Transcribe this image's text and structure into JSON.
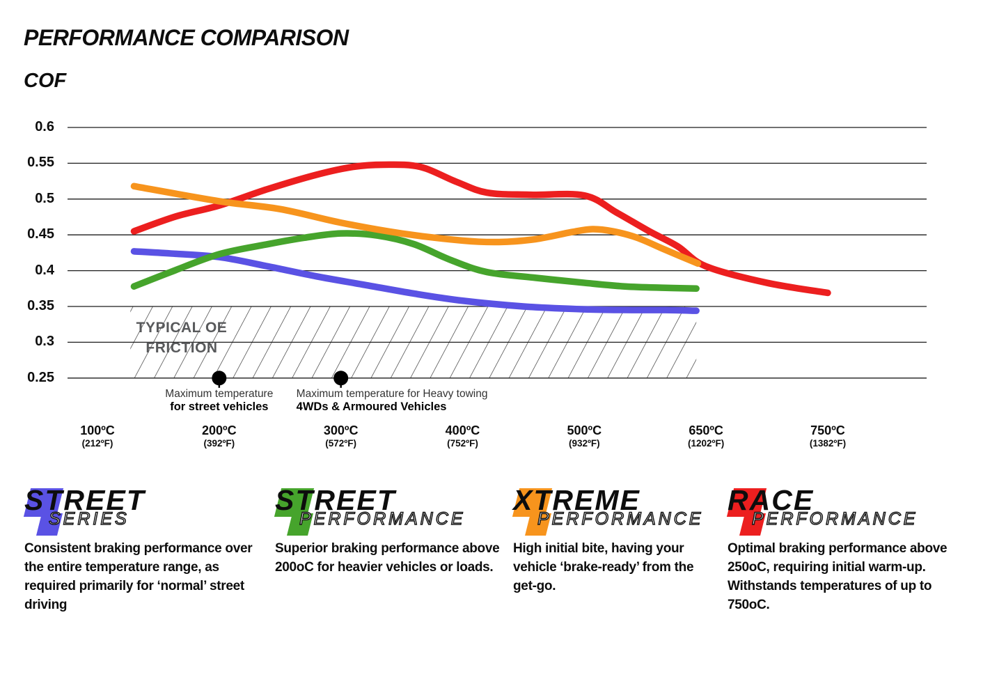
{
  "title": "PERFORMANCE COMPARISON",
  "y_axis_label": "COF",
  "chart_data": {
    "type": "line",
    "title": "PERFORMANCE COMPARISON",
    "ylabel": "COF",
    "ylim": [
      0.25,
      0.6
    ],
    "grid": "horizontal",
    "y_ticks": [
      0.6,
      0.55,
      0.5,
      0.45,
      0.4,
      0.35,
      0.3,
      0.25
    ],
    "x_ticks": [
      {
        "temp": 100,
        "c": "100ºC",
        "f": "(212ºF)"
      },
      {
        "temp": 200,
        "c": "200ºC",
        "f": "(392ºF)"
      },
      {
        "temp": 300,
        "c": "300ºC",
        "f": "(572ºF)"
      },
      {
        "temp": 400,
        "c": "400ºC",
        "f": "(752ºF)"
      },
      {
        "temp": 500,
        "c": "500ºC",
        "f": "(932ºF)"
      },
      {
        "temp": 650,
        "c": "650ºC",
        "f": "(1202ºF)"
      },
      {
        "temp": 750,
        "c": "750ºC",
        "f": "(1382ºF)"
      }
    ],
    "oe_band": {
      "label_line1": "TYPICAL OE",
      "label_line2": "FRICTION",
      "cof_from": 0.25,
      "cof_to": 0.35,
      "temp_from": 127,
      "temp_to": 638
    },
    "series": [
      {
        "name": "Street Series",
        "color": "#5a52e4",
        "points": [
          [
            130,
            0.427
          ],
          [
            160,
            0.424
          ],
          [
            200,
            0.419
          ],
          [
            240,
            0.406
          ],
          [
            280,
            0.392
          ],
          [
            320,
            0.38
          ],
          [
            360,
            0.368
          ],
          [
            400,
            0.358
          ],
          [
            450,
            0.35
          ],
          [
            500,
            0.346
          ],
          [
            560,
            0.345
          ],
          [
            600,
            0.345
          ],
          [
            638,
            0.344
          ]
        ]
      },
      {
        "name": "Street Performance",
        "color": "#46a42c",
        "points": [
          [
            130,
            0.378
          ],
          [
            160,
            0.398
          ],
          [
            200,
            0.423
          ],
          [
            240,
            0.437
          ],
          [
            270,
            0.446
          ],
          [
            300,
            0.452
          ],
          [
            330,
            0.449
          ],
          [
            360,
            0.437
          ],
          [
            390,
            0.415
          ],
          [
            420,
            0.398
          ],
          [
            460,
            0.39
          ],
          [
            500,
            0.383
          ],
          [
            550,
            0.378
          ],
          [
            600,
            0.376
          ],
          [
            638,
            0.375
          ]
        ]
      },
      {
        "name": "Xtreme Performance",
        "color": "#f7941d",
        "points": [
          [
            130,
            0.518
          ],
          [
            200,
            0.497
          ],
          [
            250,
            0.486
          ],
          [
            300,
            0.467
          ],
          [
            350,
            0.452
          ],
          [
            400,
            0.442
          ],
          [
            430,
            0.44
          ],
          [
            460,
            0.444
          ],
          [
            490,
            0.454
          ],
          [
            510,
            0.458
          ],
          [
            535,
            0.455
          ],
          [
            565,
            0.446
          ],
          [
            600,
            0.429
          ],
          [
            640,
            0.41
          ]
        ]
      },
      {
        "name": "Race Performance",
        "color": "#ec1f1f",
        "points": [
          [
            130,
            0.455
          ],
          [
            165,
            0.476
          ],
          [
            200,
            0.491
          ],
          [
            240,
            0.514
          ],
          [
            280,
            0.534
          ],
          [
            310,
            0.545
          ],
          [
            335,
            0.548
          ],
          [
            365,
            0.545
          ],
          [
            395,
            0.524
          ],
          [
            420,
            0.509
          ],
          [
            455,
            0.506
          ],
          [
            500,
            0.505
          ],
          [
            540,
            0.481
          ],
          [
            580,
            0.455
          ],
          [
            615,
            0.434
          ],
          [
            650,
            0.406
          ],
          [
            700,
            0.383
          ],
          [
            750,
            0.369
          ]
        ]
      }
    ],
    "annotations": [
      {
        "temp": 200,
        "line1": "Maximum temperature",
        "line2": "for street vehicles",
        "align": "center"
      },
      {
        "temp": 300,
        "line1": "Maximum temperature for Heavy towing",
        "line2": "4WDs & Armoured Vehicles",
        "align": "left"
      }
    ]
  },
  "legend": [
    {
      "word1": "STREET",
      "word2": "SERIES",
      "color": "#5a52e4",
      "description": "Consistent braking performance over the entire temperature range, as required primarily for ‘normal’ street driving"
    },
    {
      "word1": "STREET",
      "word2": "PERFORMANCE",
      "color": "#46a42c",
      "description": "Superior braking performance above 200oC for heavier vehicles or loads."
    },
    {
      "word1": "XTREME",
      "word2": "PERFORMANCE",
      "color": "#f7941d",
      "description": "High initial bite, having your vehicle ‘brake-ready’ from the get-go."
    },
    {
      "word1": "RACE",
      "word2": "PERFORMANCE",
      "color": "#ec1f1f",
      "description": "Optimal braking performance above 250oC, requiring initial warm-up. Withstands temperatures of up to 750oC."
    }
  ]
}
